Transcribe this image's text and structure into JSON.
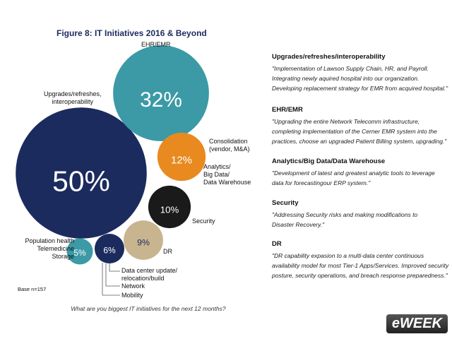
{
  "chart_data": {
    "type": "bubble",
    "title": "Figure 8: IT Initiatives 2016 & Beyond",
    "categories": [
      [
        "Upgrades/refreshes,\ninteroperability"
      ],
      [
        "EHR/EMR"
      ],
      [
        "Consolidation\n(vendor, M&A)",
        "Analytics/\nBig Data/\nData Warehouse"
      ],
      [
        "Security"
      ],
      [
        "DR"
      ],
      [
        "Data center update/\nrelocation/build",
        "Network",
        "Mobility"
      ],
      [
        "Population health\nTelemedicine\nStorage"
      ]
    ],
    "values": [
      50,
      32,
      12,
      10,
      9,
      6,
      5
    ],
    "value_labels": [
      "50%",
      "32%",
      "12%",
      "10%",
      "9%",
      "6%",
      "5%"
    ],
    "colors": [
      "#1c2b5e",
      "#3b9aa6",
      "#e88a1f",
      "#1a1a1a",
      "#c8b590",
      "#1c2b5e",
      "#3b9aa6"
    ],
    "label_colors": [
      "#ffffff",
      "#ffffff",
      "#ffffff",
      "#ffffff",
      "#1c2b5e",
      "#ffffff",
      "#ffffff"
    ],
    "base_note": "Base n=157",
    "question": "What are you biggest IT initiatives for the next 12 months?"
  },
  "quotes": [
    {
      "heading": "Upgrades/refreshes/interoperability",
      "text": "\"Implementation of Lawson Supply Chain, HR, and Payroll.\nIntegrating newly aquired hospital into our organization.\nDeveloping replacement strategy for EMR from acquired hospital.\""
    },
    {
      "heading": "EHR/EMR",
      "text": "\"Upgrading the entire Network Telecomm infrastructure,\ncompleting implementation of the Cerner EMR system into the\npractices, choose an upgraded Patient Billing system, upgrading.\""
    },
    {
      "heading": "Analytics/Big Data/Data Warehouse",
      "text": "\"Development of latest and greatest analytic tools to leverage\ndata for forecastingour ERP system.\""
    },
    {
      "heading": "Security",
      "text": "\"Addressing Security risks and making modifications to\nDisaster Recovery.\""
    },
    {
      "heading": "DR",
      "text": "\"DR capability expasion to a multi-data center continuous\navailability model for most Tier-1 Apps/Services. Improved security\nposture, security operations, and breach response preparedness.\""
    }
  ],
  "logo": "eWEEK"
}
